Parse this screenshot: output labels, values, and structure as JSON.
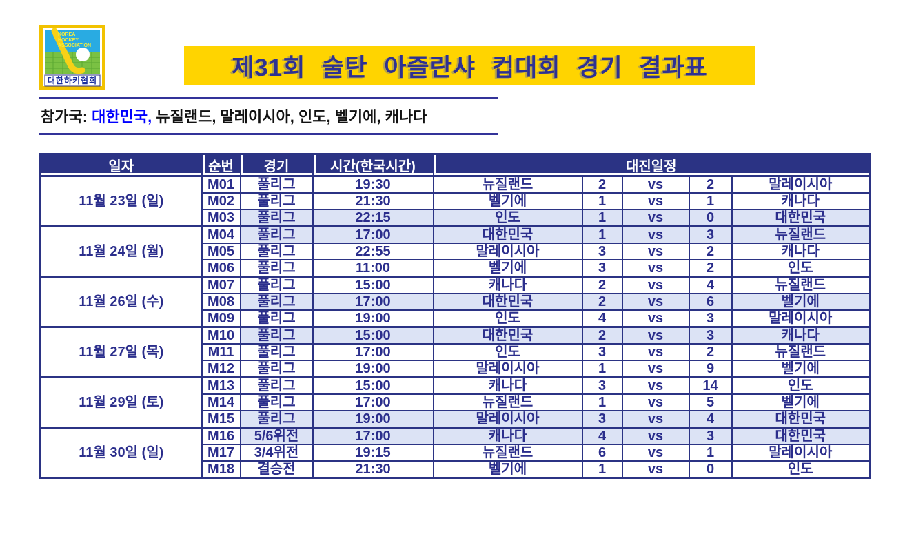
{
  "logo": {
    "lines_en": [
      "KOREA",
      "HOCKEY",
      "ASSOCIATION"
    ],
    "name_kr": "대한하키협회"
  },
  "title": "제31회 술탄 아즐란샤 컵대회 경기 결과표",
  "participants": {
    "label": "참가국: ",
    "home": "대한민국, ",
    "rest": "뉴질랜드, 말레이시아, 인도, 벨기에, 캐나다"
  },
  "table": {
    "col_headers": {
      "date": "일자",
      "no": "순번",
      "match": "경기",
      "time": "시간(한국시간)",
      "schedule": "대진일정"
    },
    "vs_label": "vs",
    "groups": [
      {
        "date": "11월 23일 (일)",
        "rows": [
          {
            "no": "M01",
            "match": "풀리그",
            "time": "19:30",
            "home": "뉴질랜드",
            "home_score": "2",
            "away_score": "2",
            "away": "말레이시아",
            "highlight": false
          },
          {
            "no": "M02",
            "match": "풀리그",
            "time": "21:30",
            "home": "벨기에",
            "home_score": "1",
            "away_score": "1",
            "away": "캐나다",
            "highlight": false
          },
          {
            "no": "M03",
            "match": "풀리그",
            "time": "22:15",
            "home": "인도",
            "home_score": "1",
            "away_score": "0",
            "away": "대한민국",
            "highlight": true
          }
        ]
      },
      {
        "date": "11월 24일 (월)",
        "rows": [
          {
            "no": "M04",
            "match": "풀리그",
            "time": "17:00",
            "home": "대한민국",
            "home_score": "1",
            "away_score": "3",
            "away": "뉴질랜드",
            "highlight": true
          },
          {
            "no": "M05",
            "match": "풀리그",
            "time": "22:55",
            "home": "말레이시아",
            "home_score": "3",
            "away_score": "2",
            "away": "캐나다",
            "highlight": false
          },
          {
            "no": "M06",
            "match": "풀리그",
            "time": "11:00",
            "home": "벨기에",
            "home_score": "3",
            "away_score": "2",
            "away": "인도",
            "highlight": false
          }
        ]
      },
      {
        "date": "11월 26일 (수)",
        "rows": [
          {
            "no": "M07",
            "match": "풀리그",
            "time": "15:00",
            "home": "캐나다",
            "home_score": "2",
            "away_score": "4",
            "away": "뉴질랜드",
            "highlight": false
          },
          {
            "no": "M08",
            "match": "풀리그",
            "time": "17:00",
            "home": "대한민국",
            "home_score": "2",
            "away_score": "6",
            "away": "벨기에",
            "highlight": true
          },
          {
            "no": "M09",
            "match": "풀리그",
            "time": "19:00",
            "home": "인도",
            "home_score": "4",
            "away_score": "3",
            "away": "말레이시아",
            "highlight": false
          }
        ]
      },
      {
        "date": "11월 27일 (목)",
        "rows": [
          {
            "no": "M10",
            "match": "풀리그",
            "time": "15:00",
            "home": "대한민국",
            "home_score": "2",
            "away_score": "3",
            "away": "캐나다",
            "highlight": true
          },
          {
            "no": "M11",
            "match": "풀리그",
            "time": "17:00",
            "home": "인도",
            "home_score": "3",
            "away_score": "2",
            "away": "뉴질랜드",
            "highlight": false
          },
          {
            "no": "M12",
            "match": "풀리그",
            "time": "19:00",
            "home": "말레이시아",
            "home_score": "1",
            "away_score": "9",
            "away": "벨기에",
            "highlight": false
          }
        ]
      },
      {
        "date": "11월 29일 (토)",
        "rows": [
          {
            "no": "M13",
            "match": "풀리그",
            "time": "15:00",
            "home": "캐나다",
            "home_score": "3",
            "away_score": "14",
            "away": "인도",
            "highlight": false
          },
          {
            "no": "M14",
            "match": "풀리그",
            "time": "17:00",
            "home": "뉴질랜드",
            "home_score": "1",
            "away_score": "5",
            "away": "벨기에",
            "highlight": false
          },
          {
            "no": "M15",
            "match": "풀리그",
            "time": "19:00",
            "home": "말레이시아",
            "home_score": "3",
            "away_score": "4",
            "away": "대한민국",
            "highlight": true
          }
        ]
      },
      {
        "date": "11월 30일 (일)",
        "rows": [
          {
            "no": "M16",
            "match": "5/6위전",
            "time": "17:00",
            "home": "캐나다",
            "home_score": "4",
            "away_score": "3",
            "away": "대한민국",
            "highlight": true
          },
          {
            "no": "M17",
            "match": "3/4위전",
            "time": "19:15",
            "home": "뉴질랜드",
            "home_score": "6",
            "away_score": "1",
            "away": "말레이시아",
            "highlight": false
          },
          {
            "no": "M18",
            "match": "결승전",
            "time": "21:30",
            "home": "벨기에",
            "home_score": "1",
            "away_score": "0",
            "away": "인도",
            "highlight": false
          }
        ]
      }
    ]
  },
  "colors": {
    "header_navy": "#2b3384",
    "text_navy": "#2b2e8c",
    "highlight_row": "#dce3f5",
    "banner_yellow": "#ffd400",
    "title_blue": "#2e3192",
    "home_country_blue": "#0000ff",
    "rule_blue": "#333399"
  }
}
